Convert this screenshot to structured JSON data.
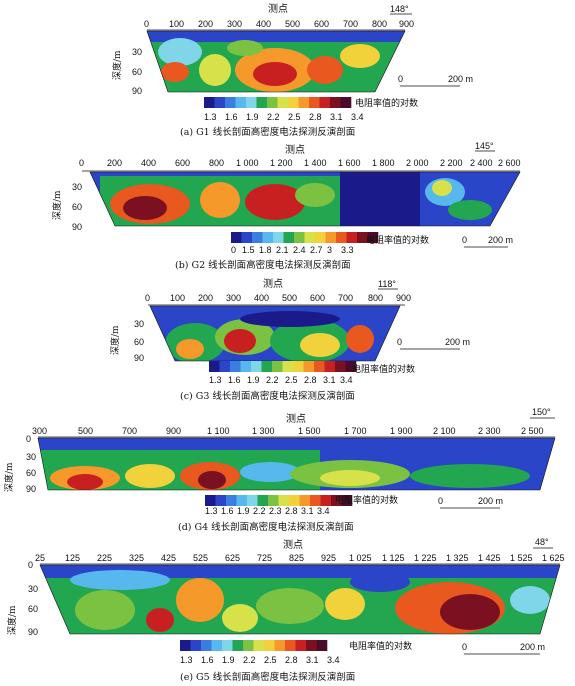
{
  "scale_colors": [
    "#1a1a8a",
    "#2a45c8",
    "#3a7fe0",
    "#57b8ee",
    "#7fd6e8",
    "#22a650",
    "#7cc242",
    "#d7e24a",
    "#f2d23a",
    "#f59a2a",
    "#e8581f",
    "#c82020",
    "#7a1020",
    "#4a0c2a"
  ],
  "panels": [
    {
      "id": "g1",
      "axis_title": "测点",
      "depth_label": "深度/m",
      "ticks": [
        "0",
        "100",
        "200",
        "300",
        "400",
        "500",
        "600",
        "700",
        "800",
        "900"
      ],
      "depth_ticks": [
        "30",
        "60",
        "90"
      ],
      "bearing": "148°",
      "scale_label": "0",
      "scale_value": "200 m",
      "legend_title": "电阻率值的对数",
      "legend_values": [
        "1.3",
        "1.6",
        "1.9",
        "2.2",
        "2.5",
        "2.8",
        "3.1",
        "3.4"
      ],
      "caption": "(a)  G1 线长剖面高密度电法探测反演剖面"
    },
    {
      "id": "g2",
      "axis_title": "测点",
      "depth_label": "深度/m",
      "ticks": [
        "0",
        "200",
        "400",
        "600",
        "800",
        "1 000",
        "1 200",
        "1 400",
        "1 600",
        "1 800",
        "2 000",
        "2 200",
        "2 400",
        "2 600"
      ],
      "depth_ticks": [
        "30",
        "60",
        "90"
      ],
      "bearing": "145°",
      "scale_label": "0",
      "scale_value": "200 m",
      "legend_title": "电阻率值的对数",
      "legend_values": [
        "0",
        "1.5",
        "1.8",
        "2.1",
        "2.4",
        "2.7",
        "3",
        "3.3"
      ],
      "caption": "(b)  G2 线长剖面高密度电法探测反演剖面"
    },
    {
      "id": "g3",
      "axis_title": "测点",
      "depth_label": "深度/m",
      "ticks": [
        "0",
        "100",
        "200",
        "300",
        "400",
        "500",
        "600",
        "700",
        "800",
        "900"
      ],
      "depth_ticks": [
        "30",
        "60",
        "90"
      ],
      "bearing": "118°",
      "scale_label": "0",
      "scale_value": "200 m",
      "legend_title": "电阻率值的对数",
      "legend_values": [
        "1.3",
        "1.6",
        "1.9",
        "2.2",
        "2.5",
        "2.8",
        "3.1",
        "3.4"
      ],
      "caption": "(c)  G3 线长剖面高密度电法探测反演剖面"
    },
    {
      "id": "g4",
      "axis_title": "测点",
      "depth_label": "深度/m",
      "ticks": [
        "300",
        "500",
        "700",
        "900",
        "1 100",
        "1 300",
        "1 500",
        "1 700",
        "1 900",
        "2 100",
        "2 300",
        "2 500"
      ],
      "depth_ticks": [
        "0",
        "30",
        "60",
        "90"
      ],
      "bearing": "150°",
      "scale_label": "0",
      "scale_value": "200 m",
      "legend_title": "电阻率值的对数",
      "legend_values": [
        "1.3",
        "1.6",
        "1.9",
        "2.2",
        "2.3",
        "2.8",
        "3.1",
        "3.4"
      ],
      "caption": "(d)  G4 线长剖面高密度电法探测反演剖面"
    },
    {
      "id": "g5",
      "axis_title": "测点",
      "depth_label": "深度/m",
      "ticks": [
        "25",
        "125",
        "225",
        "325",
        "425",
        "525",
        "625",
        "725",
        "825",
        "925",
        "1 025",
        "1 125",
        "1 225",
        "1 325",
        "1 425",
        "1 525",
        "1 625"
      ],
      "depth_ticks": [
        "0",
        "30",
        "60",
        "90"
      ],
      "bearing": "48°",
      "scale_label": "0",
      "scale_value": "200 m",
      "legend_title": "电阻率值的对数",
      "legend_values": [
        "1.3",
        "1.6",
        "1.9",
        "2.2",
        "2.5",
        "2.8",
        "3.1",
        "3.4"
      ],
      "caption": "(e)  G5 线长剖面高密度电法探测反演剖面"
    }
  ]
}
